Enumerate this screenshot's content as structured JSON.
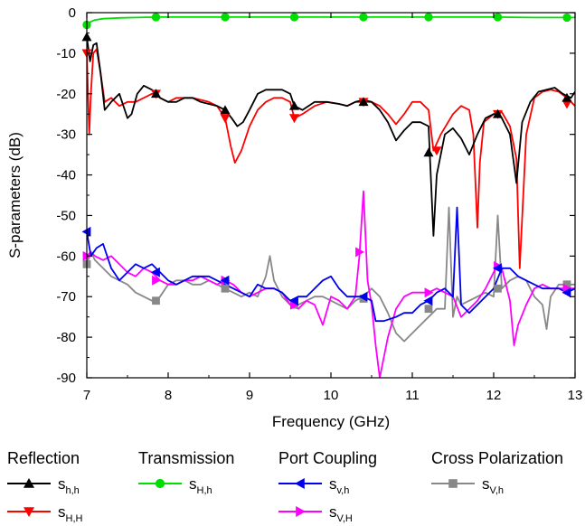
{
  "chart_data": {
    "type": "line",
    "title": "",
    "xlabel": "Frequency (GHz)",
    "ylabel": "S-parameters (dB)",
    "xlim": [
      7,
      13
    ],
    "ylim": [
      -90,
      0
    ],
    "xticks": [
      7,
      8,
      9,
      10,
      11,
      12,
      13
    ],
    "yticks": [
      0,
      -10,
      -20,
      -30,
      -40,
      -50,
      -60,
      -70,
      -80,
      -90
    ],
    "grid": false,
    "legend_position": "bottom",
    "legend_groups": [
      {
        "title": "Reflection",
        "series": [
          "s_hh",
          "s_HH"
        ]
      },
      {
        "title": "Transmission",
        "series": [
          "s_Hh"
        ]
      },
      {
        "title": "Port Coupling",
        "series": [
          "s_vh",
          "s_VH"
        ]
      },
      {
        "title": "Cross Polarization",
        "series": [
          "s_Vh"
        ]
      }
    ],
    "series": [
      {
        "id": "s_hh",
        "label_main": "s",
        "label_sub": "h,h",
        "color": "#000000",
        "marker": "triangle-up",
        "x": [
          7.0,
          7.04,
          7.08,
          7.12,
          7.17,
          7.22,
          7.3,
          7.4,
          7.5,
          7.55,
          7.62,
          7.7,
          7.8,
          7.85,
          7.9,
          8.0,
          8.1,
          8.2,
          8.3,
          8.4,
          8.5,
          8.6,
          8.7,
          8.78,
          8.85,
          8.92,
          9.0,
          9.1,
          9.2,
          9.3,
          9.4,
          9.5,
          9.55,
          9.65,
          9.8,
          9.95,
          10.1,
          10.2,
          10.3,
          10.4,
          10.5,
          10.6,
          10.7,
          10.8,
          10.9,
          10.95,
          11.0,
          11.1,
          11.2,
          11.26,
          11.3,
          11.4,
          11.5,
          11.6,
          11.7,
          11.8,
          11.9,
          12.0,
          12.05,
          12.1,
          12.2,
          12.28,
          12.35,
          12.45,
          12.55,
          12.65,
          12.75,
          12.85,
          12.95,
          13.0
        ],
        "y": [
          -6,
          -12,
          -8,
          -7.5,
          -15,
          -24,
          -22,
          -20,
          -26,
          -25,
          -20,
          -18,
          -19,
          -20,
          -21,
          -22,
          -22,
          -21,
          -21,
          -22,
          -22.5,
          -23,
          -24,
          -26,
          -28,
          -27,
          -24,
          -20,
          -19,
          -19,
          -19,
          -20,
          -23,
          -24,
          -22,
          -22,
          -22.5,
          -23,
          -22,
          -21.5,
          -22,
          -24,
          -27,
          -31.5,
          -29,
          -28,
          -27,
          -27,
          -28,
          -55,
          -40,
          -30,
          -28.5,
          -31,
          -35,
          -30,
          -26,
          -25,
          -25,
          -26,
          -30,
          -42,
          -27,
          -22,
          -19.5,
          -19,
          -18.5,
          -20,
          -21,
          -19.5
        ],
        "markers_x": [
          7.0,
          7.85,
          8.7,
          9.55,
          10.4,
          11.2,
          12.05,
          12.9
        ],
        "markers_y": [
          -6,
          -20,
          -24,
          -23,
          -22,
          -34.5,
          -25,
          -21
        ]
      },
      {
        "id": "s_HH",
        "label_main": "s",
        "label_sub": "H,H",
        "color": "#ff0000",
        "marker": "triangle-down",
        "x": [
          7.0,
          7.03,
          7.05,
          7.08,
          7.12,
          7.17,
          7.22,
          7.3,
          7.4,
          7.5,
          7.6,
          7.7,
          7.8,
          7.85,
          7.9,
          8.0,
          8.1,
          8.2,
          8.3,
          8.4,
          8.5,
          8.6,
          8.7,
          8.77,
          8.82,
          8.9,
          9.0,
          9.1,
          9.2,
          9.3,
          9.4,
          9.5,
          9.55,
          9.65,
          9.8,
          9.95,
          10.1,
          10.2,
          10.3,
          10.4,
          10.5,
          10.6,
          10.7,
          10.8,
          10.9,
          11.0,
          11.1,
          11.2,
          11.26,
          11.35,
          11.5,
          11.6,
          11.7,
          11.75,
          11.8,
          11.83,
          11.88,
          12.0,
          12.05,
          12.1,
          12.2,
          12.28,
          12.32,
          12.4,
          12.5,
          12.6,
          12.7,
          12.8,
          12.9,
          13.0
        ],
        "y": [
          -10,
          -30,
          -20,
          -10,
          -9,
          -15,
          -22,
          -21,
          -23,
          -22,
          -22,
          -21,
          -20,
          -20,
          -21,
          -22,
          -21,
          -21,
          -21,
          -21.5,
          -22,
          -23,
          -26,
          -33,
          -37,
          -34,
          -28,
          -24,
          -22,
          -21,
          -21,
          -22,
          -26,
          -25,
          -23,
          -22,
          -22.5,
          -23,
          -22,
          -22,
          -22,
          -23,
          -25,
          -27.5,
          -25,
          -22,
          -22,
          -24,
          -34,
          -30,
          -25,
          -23,
          -24,
          -30,
          -53,
          -37,
          -27,
          -25,
          -25,
          -24.5,
          -28,
          -36,
          -63,
          -30,
          -21,
          -19.5,
          -19,
          -19.5,
          -21,
          -23
        ],
        "markers_x": [
          7.0,
          7.85,
          8.7,
          9.55,
          10.4,
          11.3,
          12.05,
          12.9
        ],
        "markers_y": [
          -10,
          -20,
          -26,
          -26,
          -22,
          -34,
          -25,
          -22.5
        ]
      },
      {
        "id": "s_Hh",
        "label_main": "s",
        "label_sub": "H,h",
        "color": "#00dd00",
        "marker": "circle",
        "x": [
          7.0,
          7.05,
          7.1,
          7.2,
          7.4,
          7.6,
          7.85,
          8.5,
          9.0,
          9.5,
          10.0,
          10.4,
          11.0,
          11.5,
          12.0,
          12.5,
          13.0
        ],
        "y": [
          -3,
          -2.2,
          -1.8,
          -1.5,
          -1.3,
          -1.2,
          -1.1,
          -1.1,
          -1.1,
          -1.1,
          -1.1,
          -1.1,
          -1.1,
          -1.1,
          -1.1,
          -1.2,
          -1.2
        ],
        "markers_x": [
          7.0,
          7.85,
          8.7,
          9.55,
          10.4,
          11.2,
          12.05,
          12.9
        ],
        "markers_y": [
          -3,
          -1.1,
          -1.1,
          -1.1,
          -1.1,
          -1.1,
          -1.1,
          -1.2
        ]
      },
      {
        "id": "s_vh",
        "label_main": "s",
        "label_sub": "v,h",
        "color": "#0000ee",
        "marker": "triangle-left",
        "x": [
          7.0,
          7.05,
          7.12,
          7.2,
          7.3,
          7.4,
          7.5,
          7.6,
          7.7,
          7.8,
          7.9,
          8.0,
          8.1,
          8.2,
          8.3,
          8.4,
          8.5,
          8.6,
          8.7,
          8.8,
          8.9,
          9.0,
          9.1,
          9.2,
          9.3,
          9.4,
          9.5,
          9.6,
          9.7,
          9.8,
          9.9,
          10.0,
          10.1,
          10.2,
          10.3,
          10.4,
          10.5,
          10.55,
          10.65,
          10.8,
          10.9,
          11.0,
          11.1,
          11.2,
          11.3,
          11.4,
          11.5,
          11.55,
          11.6,
          11.7,
          11.8,
          11.9,
          12.0,
          12.1,
          12.2,
          12.3,
          12.4,
          12.5,
          12.6,
          12.7,
          12.8,
          12.9,
          13.0
        ],
        "y": [
          -54,
          -60,
          -58,
          -57,
          -63,
          -66,
          -64,
          -62,
          -63,
          -62,
          -64,
          -66,
          -67,
          -66,
          -65,
          -65,
          -65,
          -66,
          -67,
          -68,
          -69,
          -70,
          -67,
          -68,
          -68,
          -69,
          -71,
          -70,
          -70,
          -68,
          -66,
          -65,
          -68,
          -70,
          -70,
          -70,
          -71,
          -76,
          -76,
          -75,
          -74,
          -74,
          -72,
          -71,
          -69,
          -68,
          -70,
          -48,
          -72,
          -74,
          -72,
          -70,
          -68,
          -63,
          -63,
          -65,
          -66,
          -67,
          -68,
          -68,
          -68,
          -69,
          -68
        ],
        "markers_x": [
          7.0,
          7.85,
          8.7,
          9.55,
          10.4,
          11.2,
          12.05,
          12.9
        ],
        "markers_y": [
          -54,
          -64,
          -66,
          -71,
          -70,
          -71,
          -63,
          -69
        ]
      },
      {
        "id": "s_VH",
        "label_main": "s",
        "label_sub": "V,H",
        "color": "#ff00ff",
        "marker": "triangle-right",
        "x": [
          7.0,
          7.05,
          7.1,
          7.2,
          7.3,
          7.4,
          7.5,
          7.6,
          7.7,
          7.8,
          7.9,
          8.0,
          8.1,
          8.2,
          8.3,
          8.4,
          8.5,
          8.6,
          8.7,
          8.8,
          8.9,
          9.0,
          9.1,
          9.2,
          9.3,
          9.4,
          9.5,
          9.6,
          9.7,
          9.8,
          9.9,
          10.0,
          10.1,
          10.2,
          10.3,
          10.35,
          10.4,
          10.45,
          10.5,
          10.55,
          10.6,
          10.7,
          10.8,
          10.9,
          11.0,
          11.1,
          11.2,
          11.3,
          11.4,
          11.5,
          11.6,
          11.7,
          11.8,
          11.9,
          12.0,
          12.05,
          12.1,
          12.2,
          12.25,
          12.3,
          12.4,
          12.5,
          12.6,
          12.7,
          12.8,
          12.9,
          13.0
        ],
        "y": [
          -60,
          -59,
          -60,
          -61,
          -60,
          -62,
          -64,
          -65,
          -63,
          -64,
          -66,
          -67,
          -67,
          -66,
          -66,
          -65,
          -66,
          -67,
          -66,
          -67,
          -69,
          -70,
          -69,
          -68,
          -68,
          -69,
          -72,
          -73,
          -71,
          -72,
          -77,
          -70,
          -71,
          -73,
          -70,
          -60,
          -44,
          -66,
          -72,
          -82,
          -90,
          -80,
          -73,
          -70,
          -69,
          -69,
          -69,
          -68,
          -69,
          -70,
          -75,
          -73,
          -71,
          -68,
          -64,
          -62,
          -63,
          -71,
          -82,
          -77,
          -72,
          -68,
          -67,
          -68,
          -68,
          -68,
          -68
        ],
        "markers_x": [
          7.0,
          7.85,
          8.7,
          9.55,
          10.35,
          11.2,
          12.05,
          12.9
        ],
        "markers_y": [
          -60,
          -66,
          -66,
          -72,
          -59,
          -69,
          -62.5,
          -68
        ]
      },
      {
        "id": "s_Vh",
        "label_main": "s",
        "label_sub": "V,h",
        "color": "#888888",
        "marker": "square",
        "x": [
          7.0,
          7.05,
          7.1,
          7.2,
          7.3,
          7.4,
          7.5,
          7.6,
          7.7,
          7.8,
          7.85,
          7.9,
          8.0,
          8.1,
          8.2,
          8.3,
          8.4,
          8.5,
          8.6,
          8.7,
          8.8,
          8.9,
          9.0,
          9.1,
          9.2,
          9.25,
          9.3,
          9.4,
          9.5,
          9.6,
          9.7,
          9.8,
          9.9,
          10.0,
          10.1,
          10.2,
          10.3,
          10.4,
          10.5,
          10.6,
          10.7,
          10.8,
          10.9,
          11.0,
          11.1,
          11.2,
          11.3,
          11.4,
          11.45,
          11.5,
          11.55,
          11.6,
          11.7,
          11.8,
          11.9,
          12.0,
          12.05,
          12.1,
          12.2,
          12.3,
          12.4,
          12.5,
          12.6,
          12.65,
          12.7,
          12.8,
          12.9,
          13.0
        ],
        "y": [
          -62,
          -59,
          -61,
          -63,
          -65,
          -66,
          -67,
          -69,
          -70,
          -71,
          -71,
          -70,
          -67,
          -66,
          -66,
          -67,
          -67,
          -66,
          -67,
          -68,
          -69,
          -70,
          -69,
          -70,
          -65,
          -60,
          -66,
          -70,
          -72,
          -72,
          -71,
          -70,
          -70,
          -71,
          -72,
          -73,
          -71,
          -70,
          -68,
          -70,
          -74,
          -79,
          -81,
          -79,
          -77,
          -75,
          -73,
          -73,
          -48,
          -75,
          -70,
          -72,
          -71,
          -70,
          -69,
          -70,
          -50,
          -68,
          -66,
          -65,
          -66,
          -70,
          -72,
          -78,
          -70,
          -67,
          -67,
          -67
        ],
        "markers_x": [
          7.0,
          7.85,
          8.7,
          9.55,
          10.4,
          11.2,
          12.05,
          12.9
        ],
        "markers_y": [
          -62,
          -71,
          -68,
          -72,
          -70.5,
          -73,
          -68,
          -67
        ]
      }
    ]
  }
}
